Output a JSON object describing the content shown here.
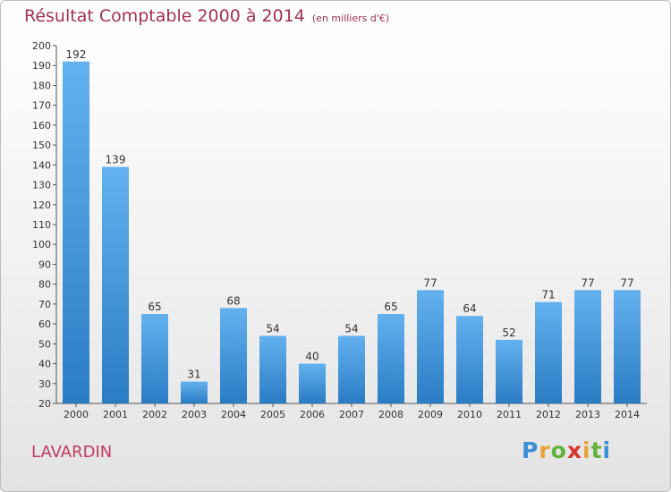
{
  "header": {
    "title": "Résultat Comptable 2000 à 2014",
    "subtitle": "(en milliers d'€)"
  },
  "commune": "LAVARDIN",
  "logo": {
    "letters": [
      "P",
      "r",
      "o",
      "x",
      "i",
      "t",
      "i"
    ],
    "colors": [
      "#3b8fd6",
      "#e8a33a",
      "#63b33b",
      "#d8362f",
      "#e8a33a",
      "#63b33b",
      "#3b8fd6"
    ]
  },
  "colors": {
    "bar_top": "#64b1ef",
    "bar_bottom": "#2a7cc4",
    "title": "#a2304f",
    "commune": "#c23a5f"
  },
  "chart_data": {
    "type": "bar",
    "categories": [
      "2000",
      "2001",
      "2002",
      "2003",
      "2004",
      "2005",
      "2006",
      "2007",
      "2008",
      "2009",
      "2010",
      "2011",
      "2012",
      "2013",
      "2014"
    ],
    "values": [
      192,
      139,
      65,
      31,
      68,
      54,
      40,
      54,
      65,
      77,
      64,
      52,
      71,
      77,
      77
    ],
    "ylim": [
      20,
      200
    ],
    "yticks": [
      20,
      30,
      40,
      50,
      60,
      70,
      80,
      90,
      100,
      110,
      120,
      130,
      140,
      150,
      160,
      170,
      180,
      190,
      200
    ],
    "grid": false
  }
}
